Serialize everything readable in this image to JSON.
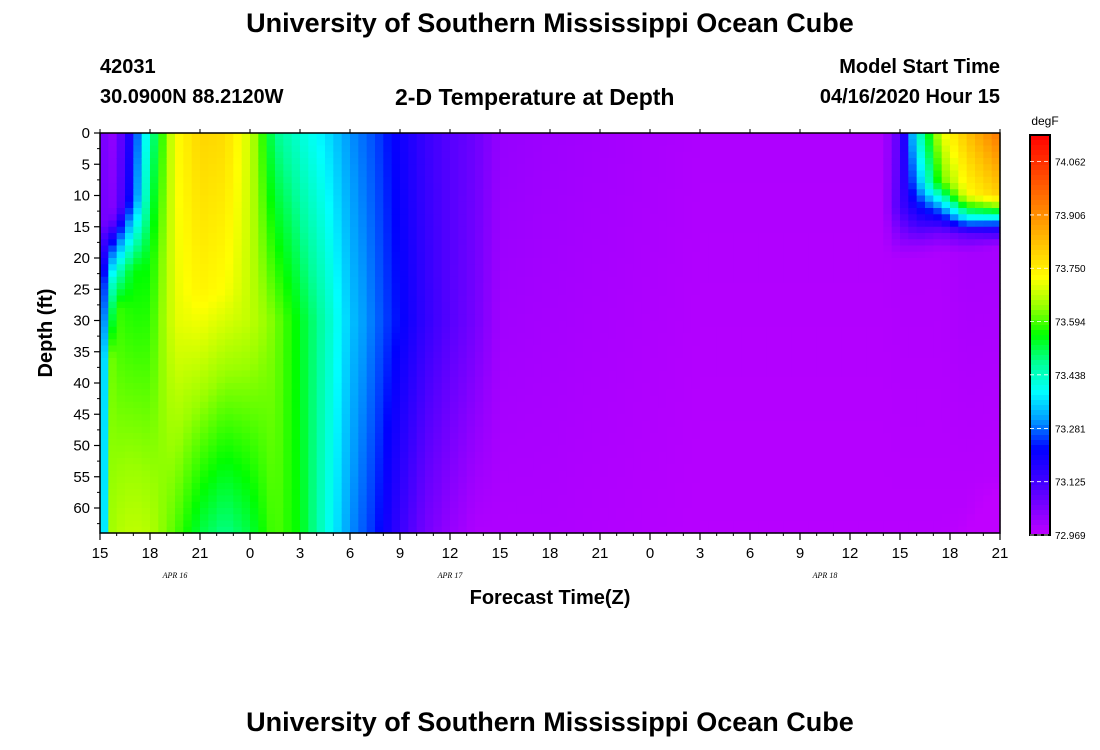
{
  "header": {
    "title": "University of Southern Mississippi Ocean Cube",
    "station_id": "42031",
    "location": "30.0900N 88.2120W",
    "plot_title": "2-D Temperature at Depth",
    "start_label": "Model Start Time",
    "start_value": "04/16/2020 Hour 15"
  },
  "footer": {
    "title": "University of Southern Mississippi Ocean Cube"
  },
  "chart_data": {
    "type": "heatmap",
    "title": "2-D Temperature at Depth",
    "xlabel": "Forecast Time(Z)",
    "ylabel": "Depth (ft)",
    "xlim": [
      0,
      54
    ],
    "ylim": [
      0,
      64
    ],
    "x_ticks": [
      0,
      3,
      6,
      9,
      12,
      15,
      18,
      21,
      24,
      27,
      30,
      33,
      36,
      39,
      42,
      45,
      48,
      51,
      54
    ],
    "x_tick_labels": [
      "15",
      "18",
      "21",
      "0",
      "3",
      "6",
      "9",
      "12",
      "15",
      "18",
      "21",
      "0",
      "3",
      "6",
      "9",
      "12",
      "15",
      "18",
      "21"
    ],
    "date_labels": [
      {
        "text": "APR 16",
        "x": 4.5
      },
      {
        "text": "APR 17",
        "x": 21
      },
      {
        "text": "APR 18",
        "x": 43.5
      }
    ],
    "y_ticks": [
      0,
      5,
      10,
      15,
      20,
      25,
      30,
      35,
      40,
      45,
      50,
      55,
      60
    ],
    "colorbar": {
      "unit": "degF",
      "min": 72.969,
      "max": 74.14,
      "tick_values": [
        74.062,
        73.906,
        73.75,
        73.594,
        73.438,
        73.281,
        73.125,
        72.969
      ],
      "tick_labels": [
        "74.062",
        "73.906",
        "73.750",
        "73.594",
        "73.438",
        "73.281",
        "73.125",
        "72.969"
      ],
      "colors": [
        "#c000ff",
        "#7a00ff",
        "#3a00ff",
        "#0000ff",
        "#0099ff",
        "#00ffff",
        "#00ff99",
        "#00ff00",
        "#99ff00",
        "#ffff00",
        "#ffcc00",
        "#ff9900",
        "#ff6600",
        "#ff3300",
        "#ff0000"
      ]
    },
    "columns": [
      {
        "x": 0,
        "profile": [
          [
            0,
            73.1
          ],
          [
            64,
            73.1
          ]
        ]
      },
      {
        "x": 0.5,
        "profile": [
          [
            0,
            73.0
          ],
          [
            14,
            73.02
          ],
          [
            18,
            73.2
          ],
          [
            24,
            73.4
          ],
          [
            30,
            73.5
          ],
          [
            36,
            73.62
          ],
          [
            64,
            73.64
          ]
        ]
      },
      {
        "x": 1.2,
        "profile": [
          [
            0,
            73.08
          ],
          [
            12,
            73.1
          ],
          [
            16,
            73.25
          ],
          [
            22,
            73.45
          ],
          [
            28,
            73.58
          ],
          [
            64,
            73.66
          ]
        ]
      },
      {
        "x": 2.0,
        "profile": [
          [
            0,
            73.22
          ],
          [
            10,
            73.25
          ],
          [
            16,
            73.4
          ],
          [
            22,
            73.55
          ],
          [
            64,
            73.67
          ]
        ]
      },
      {
        "x": 3.0,
        "profile": [
          [
            0,
            73.45
          ],
          [
            20,
            73.55
          ],
          [
            64,
            73.66
          ]
        ]
      },
      {
        "x": 4.5,
        "profile": [
          [
            0,
            73.72
          ],
          [
            30,
            73.7
          ],
          [
            64,
            73.6
          ]
        ]
      },
      {
        "x": 6.0,
        "profile": [
          [
            0,
            73.79
          ],
          [
            25,
            73.74
          ],
          [
            64,
            73.52
          ]
        ]
      },
      {
        "x": 7.5,
        "profile": [
          [
            0,
            73.78
          ],
          [
            25,
            73.72
          ],
          [
            64,
            73.48
          ]
        ]
      },
      {
        "x": 9.0,
        "profile": [
          [
            0,
            73.68
          ],
          [
            30,
            73.67
          ],
          [
            64,
            73.52
          ]
        ]
      },
      {
        "x": 10.5,
        "profile": [
          [
            0,
            73.48
          ],
          [
            30,
            73.62
          ],
          [
            64,
            73.6
          ]
        ]
      },
      {
        "x": 12.0,
        "profile": [
          [
            0,
            73.42
          ],
          [
            30,
            73.54
          ],
          [
            64,
            73.55
          ]
        ]
      },
      {
        "x": 13.5,
        "profile": [
          [
            0,
            73.37
          ],
          [
            30,
            73.45
          ],
          [
            64,
            73.42
          ]
        ]
      },
      {
        "x": 15.0,
        "profile": [
          [
            0,
            73.3
          ],
          [
            30,
            73.34
          ],
          [
            64,
            73.3
          ]
        ]
      },
      {
        "x": 16.5,
        "profile": [
          [
            0,
            73.26
          ],
          [
            30,
            73.28
          ],
          [
            64,
            73.24
          ]
        ]
      },
      {
        "x": 18.0,
        "profile": [
          [
            0,
            73.2
          ],
          [
            30,
            73.22
          ],
          [
            64,
            73.14
          ]
        ]
      },
      {
        "x": 19.5,
        "profile": [
          [
            0,
            73.14
          ],
          [
            30,
            73.15
          ],
          [
            64,
            73.06
          ]
        ]
      },
      {
        "x": 21.0,
        "profile": [
          [
            0,
            73.1
          ],
          [
            30,
            73.1
          ],
          [
            64,
            73.02
          ]
        ]
      },
      {
        "x": 22.5,
        "profile": [
          [
            0,
            73.07
          ],
          [
            30,
            73.06
          ],
          [
            64,
            72.99
          ]
        ]
      },
      {
        "x": 24.0,
        "profile": [
          [
            0,
            73.02
          ],
          [
            64,
            72.99
          ]
        ]
      },
      {
        "x": 27.0,
        "profile": [
          [
            0,
            73.01
          ],
          [
            64,
            72.99
          ]
        ]
      },
      {
        "x": 36.0,
        "profile": [
          [
            0,
            72.99
          ],
          [
            64,
            72.98
          ]
        ]
      },
      {
        "x": 45.0,
        "profile": [
          [
            0,
            72.99
          ],
          [
            64,
            72.98
          ]
        ]
      },
      {
        "x": 47.0,
        "profile": [
          [
            0,
            72.99
          ],
          [
            64,
            72.98
          ]
        ]
      },
      {
        "x": 48.0,
        "profile": [
          [
            0,
            73.1
          ],
          [
            12,
            73.12
          ],
          [
            16,
            73.05
          ],
          [
            20,
            72.99
          ],
          [
            64,
            72.98
          ]
        ]
      },
      {
        "x": 49.0,
        "profile": [
          [
            0,
            73.4
          ],
          [
            8,
            73.3
          ],
          [
            14,
            73.15
          ],
          [
            18,
            73.02
          ],
          [
            20,
            72.99
          ],
          [
            64,
            72.98
          ]
        ]
      },
      {
        "x": 50.5,
        "profile": [
          [
            0,
            73.7
          ],
          [
            8,
            73.6
          ],
          [
            12,
            73.3
          ],
          [
            16,
            73.06
          ],
          [
            19,
            72.99
          ],
          [
            64,
            72.98
          ]
        ]
      },
      {
        "x": 52.0,
        "profile": [
          [
            0,
            73.82
          ],
          [
            10,
            73.72
          ],
          [
            13,
            73.45
          ],
          [
            16,
            73.1
          ],
          [
            19,
            73.0
          ],
          [
            60,
            72.98
          ],
          [
            64,
            72.97
          ]
        ]
      },
      {
        "x": 54.0,
        "profile": [
          [
            0,
            73.95
          ],
          [
            10,
            73.8
          ],
          [
            12,
            73.6
          ],
          [
            15,
            73.2
          ],
          [
            18,
            73.0
          ],
          [
            55,
            72.98
          ],
          [
            64,
            72.94
          ]
        ]
      }
    ]
  }
}
